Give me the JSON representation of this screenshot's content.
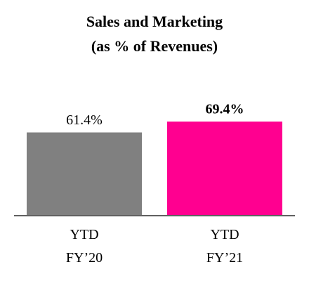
{
  "chart_data": {
    "type": "bar",
    "title": "Sales and Marketing\n(as % of Revenues)",
    "categories": [
      "YTD\nFY’20",
      "YTD\nFY’21"
    ],
    "values": [
      61.4,
      69.4
    ],
    "value_labels": [
      "61.4%",
      "69.4%"
    ],
    "colors": [
      "#808080",
      "#ff0090"
    ]
  }
}
